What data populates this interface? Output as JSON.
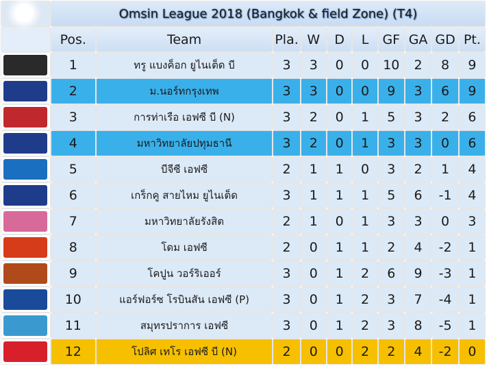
{
  "title": "Omsin League 2018 (Bangkok & field Zone) (T4)",
  "headers": [
    "Pos.",
    "Team",
    "Pla.",
    "W",
    "D",
    "L",
    "GF",
    "GA",
    "GD",
    "Pt."
  ],
  "colors": {
    "highlight_blue": "#3ab0ea",
    "highlight_gold": "#f6c000",
    "row_light": "#dce9f7"
  },
  "rows": [
    {
      "pos": "1",
      "team": "ทรู แบงค็อก ยูไนเต็ด บี",
      "pla": "3",
      "w": "3",
      "d": "0",
      "l": "0",
      "gf": "10",
      "ga": "2",
      "gd": "8",
      "pt": "9",
      "logo": "true-bangkok-logo"
    },
    {
      "pos": "2",
      "team": "ม.นอร์ทกรุงเทพ",
      "pla": "3",
      "w": "3",
      "d": "0",
      "l": "0",
      "gf": "9",
      "ga": "3",
      "gd": "6",
      "pt": "9",
      "logo": "north-bangkok-university-logo"
    },
    {
      "pos": "3",
      "team": "การท่าเรือ เอฟซี บี (N)",
      "pla": "3",
      "w": "2",
      "d": "0",
      "l": "1",
      "gf": "5",
      "ga": "3",
      "gd": "2",
      "pt": "6",
      "logo": "port-fc-logo"
    },
    {
      "pos": "4",
      "team": "มหาวิทยาลัยปทุมธานี",
      "pla": "3",
      "w": "2",
      "d": "0",
      "l": "1",
      "gf": "3",
      "ga": "3",
      "gd": "0",
      "pt": "6",
      "logo": "pathumthani-university-logo"
    },
    {
      "pos": "5",
      "team": "บีจีซี เอฟซี",
      "pla": "2",
      "w": "1",
      "d": "1",
      "l": "0",
      "gf": "3",
      "ga": "2",
      "gd": "1",
      "pt": "4",
      "logo": "bgc-fc-logo"
    },
    {
      "pos": "6",
      "team": "เกร็กคู สายไหม ยูไนเต็ด",
      "pla": "3",
      "w": "1",
      "d": "1",
      "l": "1",
      "gf": "5",
      "ga": "6",
      "gd": "-1",
      "pt": "4",
      "logo": "kasem-bundit-logo"
    },
    {
      "pos": "7",
      "team": "มหาวิทยาลัยรังสิต",
      "pla": "2",
      "w": "1",
      "d": "0",
      "l": "1",
      "gf": "3",
      "ga": "3",
      "gd": "0",
      "pt": "3",
      "logo": "rangsit-university-logo"
    },
    {
      "pos": "8",
      "team": "โดม เอฟซี",
      "pla": "2",
      "w": "0",
      "d": "1",
      "l": "1",
      "gf": "2",
      "ga": "4",
      "gd": "-2",
      "pt": "1",
      "logo": "dome-fc-logo"
    },
    {
      "pos": "9",
      "team": "โคปูน วอร์ริเออร์",
      "pla": "3",
      "w": "0",
      "d": "1",
      "l": "2",
      "gf": "6",
      "ga": "9",
      "gd": "-3",
      "pt": "1",
      "logo": "kopoon-warrior-logo"
    },
    {
      "pos": "10",
      "team": "แอร์ฟอร์ซ โรบินสัน เอฟซี (P)",
      "pla": "3",
      "w": "0",
      "d": "1",
      "l": "2",
      "gf": "3",
      "ga": "7",
      "gd": "-4",
      "pt": "1",
      "logo": "air-force-logo"
    },
    {
      "pos": "11",
      "team": "สมุทรปราการ เอฟซี",
      "pla": "3",
      "w": "0",
      "d": "1",
      "l": "2",
      "gf": "3",
      "ga": "8",
      "gd": "-5",
      "pt": "1",
      "logo": "samut-prakan-logo"
    },
    {
      "pos": "12",
      "team": "โปลิศ เทโร เอฟซี บี (N)",
      "pla": "2",
      "w": "0",
      "d": "0",
      "l": "2",
      "gf": "2",
      "ga": "4",
      "gd": "-2",
      "pt": "0",
      "logo": "police-tero-logo"
    }
  ]
}
